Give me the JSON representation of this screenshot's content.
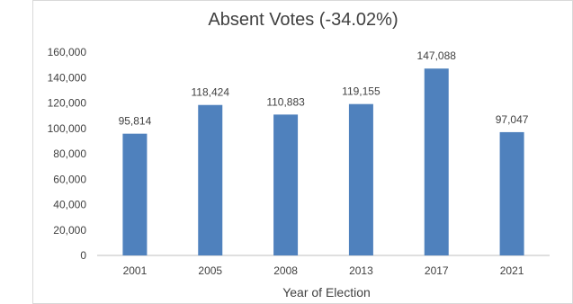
{
  "chart_data": {
    "type": "bar",
    "title": "Absent Votes (-34.02%)",
    "categories": [
      "2001",
      "2005",
      "2008",
      "2013",
      "2017",
      "2021"
    ],
    "values": [
      95814,
      118424,
      110883,
      119155,
      147088,
      97047
    ],
    "value_labels": [
      "95,814",
      "118,424",
      "110,883",
      "119,155",
      "147,088",
      "97,047"
    ],
    "xlabel": "Year of Election",
    "ylabel": "",
    "ylim": [
      0,
      160000
    ],
    "y_ticks": [
      0,
      20000,
      40000,
      60000,
      80000,
      100000,
      120000,
      140000,
      160000
    ],
    "y_tick_labels": [
      "0",
      "20,000",
      "40,000",
      "60,000",
      "80,000",
      "100,000",
      "120,000",
      "140,000",
      "160,000"
    ],
    "grid": false,
    "legend": "none",
    "bar_color": "#4F81BD",
    "border_color": "#D9D9D9"
  }
}
